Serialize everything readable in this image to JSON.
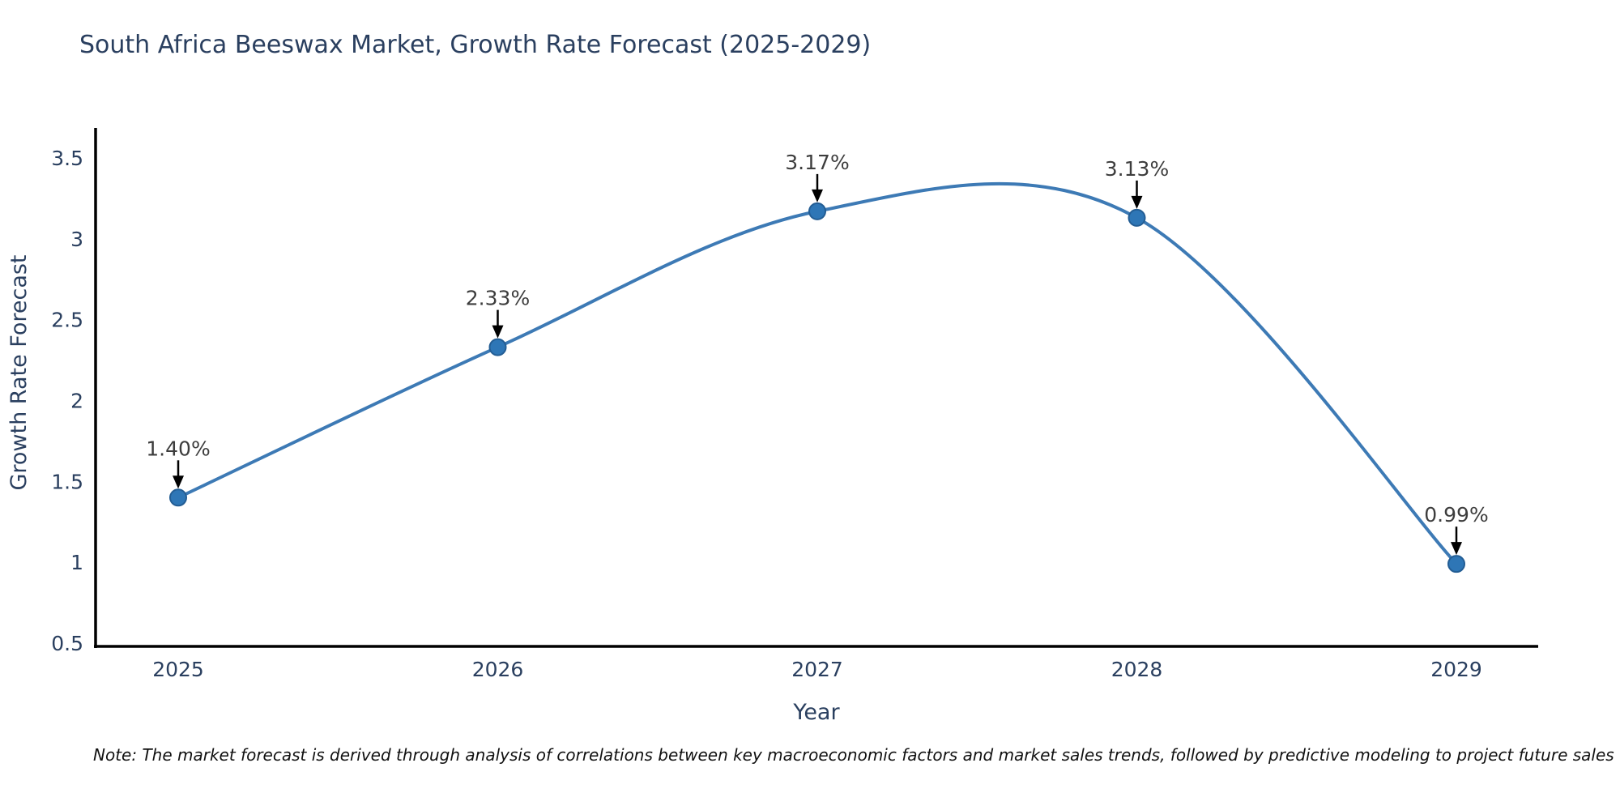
{
  "note": "Note: The market forecast is derived through analysis of correlations between key macroeconomic factors and market sales trends, followed by predictive modeling to project future sales",
  "chart_data": {
    "type": "line",
    "title": "South Africa Beeswax Market, Growth Rate Forecast (2025-2029)",
    "xlabel": "Year",
    "ylabel": "Growth Rate Forecast",
    "x": [
      2025,
      2026,
      2027,
      2028,
      2029
    ],
    "xtick_labels": [
      "2025",
      "2026",
      "2027",
      "2028",
      "2029"
    ],
    "series": [
      {
        "name": "Growth Rate Forecast",
        "values": [
          1.4,
          2.33,
          3.17,
          3.13,
          0.99
        ]
      }
    ],
    "point_labels": [
      "1.40%",
      "2.33%",
      "3.17%",
      "3.13%",
      "0.99%"
    ],
    "ytick_values": [
      0.5,
      1,
      1.5,
      2,
      2.5,
      3,
      3.5
    ],
    "ytick_labels": [
      "0.5",
      "1",
      "1.5",
      "2",
      "2.5",
      "3",
      "3.5"
    ],
    "ylim": [
      0.47,
      3.7
    ],
    "xlim": [
      2024.74,
      2029.26
    ],
    "line_shape": "spline",
    "grid": false,
    "legend_position": "none",
    "annotation_style": "label-with-down-arrow",
    "colors": {
      "line": "#3d7ab5",
      "marker_fill": "#2e76b6",
      "marker_edge": "#235d94",
      "axis": "#000000",
      "tick_text": "#2a3f5f",
      "annotation_text": "#3d3d3d",
      "arrow": "#000000",
      "title_text": "#2a3f5f",
      "background": "#ffffff"
    }
  }
}
